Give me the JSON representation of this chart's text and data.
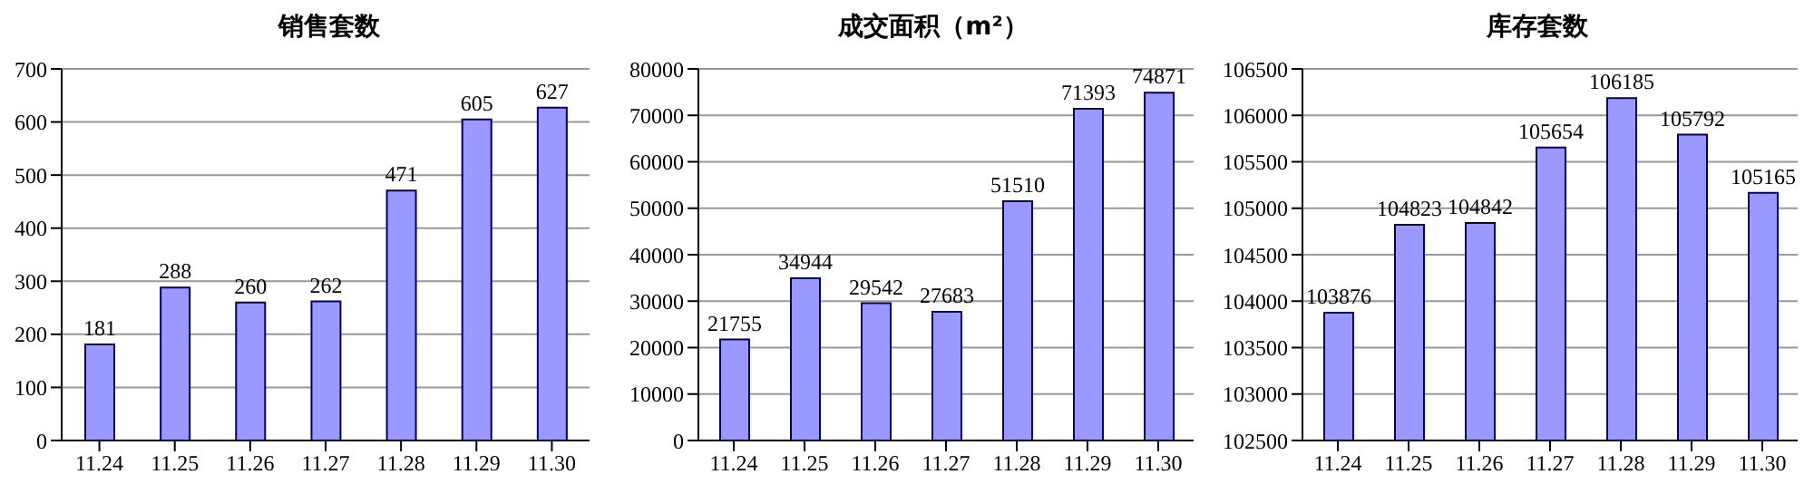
{
  "chart_data": [
    {
      "type": "bar",
      "title": "销售套数",
      "categories": [
        "11.24",
        "11.25",
        "11.26",
        "11.27",
        "11.28",
        "11.29",
        "11.30"
      ],
      "values": [
        181,
        288,
        260,
        262,
        471,
        605,
        627
      ],
      "color": "#9999ff",
      "ylim": [
        0,
        700
      ],
      "yticks": [
        0,
        100,
        200,
        300,
        400,
        500,
        600,
        700
      ],
      "grid": "y",
      "data_labels": true
    },
    {
      "type": "bar",
      "title": "成交面积（m²）",
      "categories": [
        "11.24",
        "11.25",
        "11.26",
        "11.27",
        "11.28",
        "11.29",
        "11.30"
      ],
      "values": [
        21755,
        34944,
        29542,
        27683,
        51510,
        71393,
        74871
      ],
      "color": "#9999ff",
      "ylim": [
        0,
        80000
      ],
      "yticks": [
        0,
        10000,
        20000,
        30000,
        40000,
        50000,
        60000,
        70000,
        80000
      ],
      "grid": "y",
      "data_labels": true
    },
    {
      "type": "bar",
      "title": "库存套数",
      "categories": [
        "11.24",
        "11.25",
        "11.26",
        "11.27",
        "11.28",
        "11.29",
        "11.30"
      ],
      "values": [
        103876,
        104823,
        104842,
        105654,
        106185,
        105792,
        105165
      ],
      "color": "#9999ff",
      "ylim": [
        102500,
        106500
      ],
      "yticks": [
        102500,
        103000,
        103500,
        104000,
        104500,
        105000,
        105500,
        106000,
        106500
      ],
      "grid": "y",
      "data_labels": true
    }
  ]
}
